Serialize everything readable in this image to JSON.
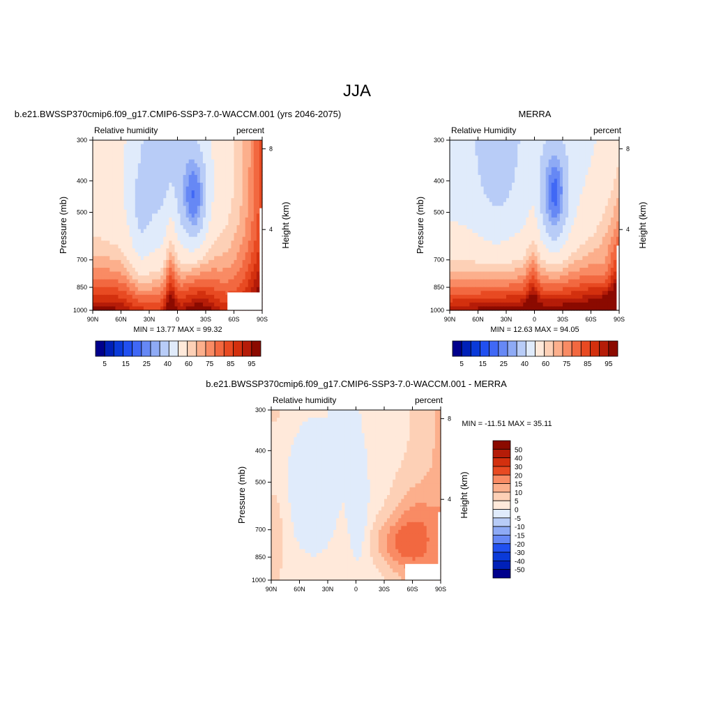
{
  "page": {
    "title": "JJA"
  },
  "palettes": {
    "rh": [
      "#00008c",
      "#0020b8",
      "#0a3ad9",
      "#2150f0",
      "#4068f5",
      "#6688f5",
      "#8eaaf5",
      "#b8ccf7",
      "#e0ebfb",
      "#ffe9da",
      "#fdd0b6",
      "#fcaf8c",
      "#f98b64",
      "#f26840",
      "#e84a22",
      "#d3300e",
      "#b51c08",
      "#8b0a00"
    ],
    "diff": [
      "#00008c",
      "#0020b8",
      "#0a3ad9",
      "#2150f0",
      "#4068f5",
      "#6688f5",
      "#8eaaf5",
      "#b8ccf7",
      "#e0ebfb",
      "#ffe9da",
      "#fdd0b6",
      "#fcaf8c",
      "#f98b64",
      "#f26840",
      "#e84a22",
      "#d3300e",
      "#b51c08",
      "#8b0a00"
    ]
  },
  "panels": [
    {
      "id": "model",
      "case_title": "b.e21.BWSSP370cmip6.f09_g17.CMIP6-SSP3-7.0-WACCM.001 (yrs 2046-2075)",
      "left_label": "Relative humidity",
      "right_label": "percent",
      "min_max": "MIN =  13.77  MAX =  99.32",
      "ylabel": "Pressure (mb)",
      "y2label": "Height (km)",
      "colorbar_labels": [
        "5",
        "15",
        "25",
        "40",
        "60",
        "75",
        "85",
        "95"
      ]
    },
    {
      "id": "obs",
      "case_title": "MERRA",
      "left_label": "Relative Humidity",
      "right_label": "percent",
      "min_max": "MIN =  12.63  MAX =  94.05",
      "ylabel": "Pressure (mb)",
      "y2label": "Height (km)",
      "colorbar_labels": [
        "5",
        "15",
        "25",
        "40",
        "60",
        "75",
        "85",
        "95"
      ]
    },
    {
      "id": "diff",
      "case_title": "b.e21.BWSSP370cmip6.f09_g17.CMIP6-SSP3-7.0-WACCM.001 - MERRA",
      "left_label": "Relative humidity",
      "right_label": "percent",
      "min_max": "MIN = -11.51  MAX =  35.11",
      "ylabel": "Pressure (mb)",
      "y2label": "Height (km)",
      "colorbar_labels": [
        "50",
        "40",
        "30",
        "20",
        "15",
        "10",
        "5",
        "0",
        "-5",
        "-10",
        "-15",
        "-20",
        "-30",
        "-40",
        "-50"
      ]
    }
  ],
  "chart_data": [
    {
      "type": "heatmap",
      "title": "b.e21.BWSSP370cmip6.f09_g17.CMIP6-SSP3-7.0-WACCM.001 (yrs 2046-2075)",
      "variable": "Relative humidity",
      "units": "percent",
      "xlabel": "",
      "ylabel": "Pressure (mb)",
      "y2label": "Height (km)",
      "x_ticks": [
        "90N",
        "60N",
        "30N",
        "0",
        "30S",
        "60S",
        "90S"
      ],
      "y_ticks": [
        300,
        400,
        500,
        700,
        850,
        1000
      ],
      "y2_ticks": [
        8,
        4
      ],
      "y_scale": "log",
      "xlim": [
        90,
        -90
      ],
      "ylim": [
        1000,
        300
      ],
      "min": 13.77,
      "max": 99.32,
      "levels": [
        5,
        10,
        15,
        20,
        25,
        30,
        40,
        50,
        60,
        65,
        70,
        75,
        80,
        85,
        90,
        95
      ]
    },
    {
      "type": "heatmap",
      "title": "MERRA",
      "variable": "Relative Humidity",
      "units": "percent",
      "xlabel": "",
      "ylabel": "Pressure (mb)",
      "y2label": "Height (km)",
      "x_ticks": [
        "90N",
        "60N",
        "30N",
        "0",
        "30S",
        "60S",
        "90S"
      ],
      "y_ticks": [
        300,
        400,
        500,
        700,
        850,
        1000
      ],
      "y2_ticks": [
        8,
        4
      ],
      "y_scale": "log",
      "xlim": [
        90,
        -90
      ],
      "ylim": [
        1000,
        300
      ],
      "min": 12.63,
      "max": 94.05,
      "levels": [
        5,
        10,
        15,
        20,
        25,
        30,
        40,
        50,
        60,
        65,
        70,
        75,
        80,
        85,
        90,
        95
      ]
    },
    {
      "type": "heatmap",
      "title": "b.e21.BWSSP370cmip6.f09_g17.CMIP6-SSP3-7.0-WACCM.001 - MERRA",
      "variable": "Relative humidity",
      "units": "percent",
      "xlabel": "",
      "ylabel": "Pressure (mb)",
      "y2label": "Height (km)",
      "x_ticks": [
        "90N",
        "60N",
        "30N",
        "0",
        "30S",
        "60S",
        "90S"
      ],
      "y_ticks": [
        300,
        400,
        500,
        700,
        850,
        1000
      ],
      "y2_ticks": [
        8,
        4
      ],
      "y_scale": "log",
      "xlim": [
        90,
        -90
      ],
      "ylim": [
        1000,
        300
      ],
      "min": -11.51,
      "max": 35.11,
      "levels": [
        -50,
        -40,
        -30,
        -20,
        -15,
        -10,
        -5,
        0,
        5,
        10,
        15,
        20,
        30,
        40,
        50
      ]
    }
  ]
}
